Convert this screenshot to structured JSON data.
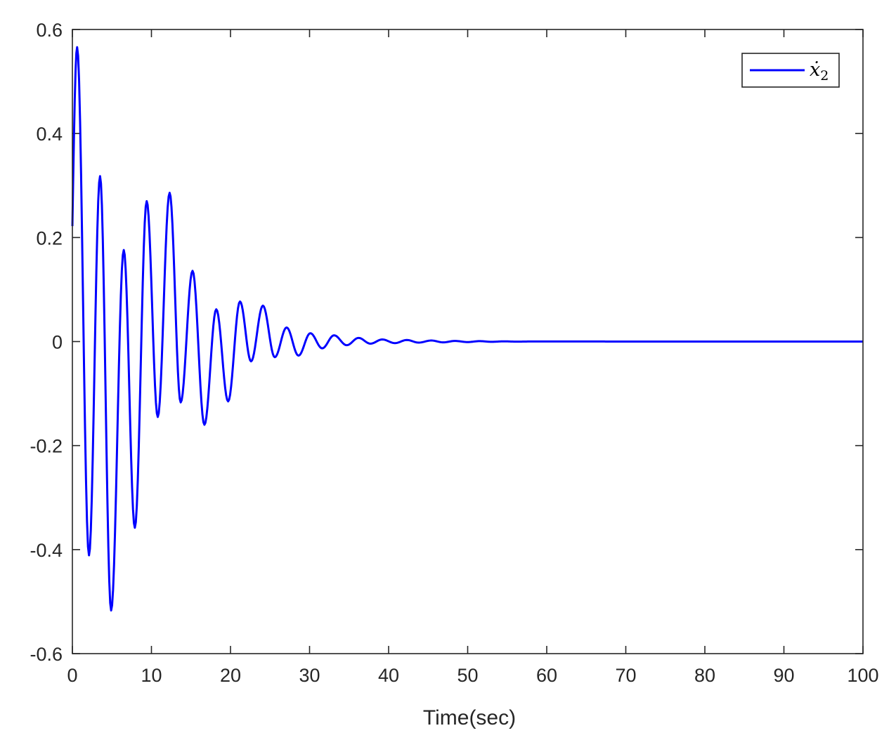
{
  "chart_data": {
    "type": "line",
    "title": "",
    "xlabel": "Time(sec)",
    "ylabel": "",
    "xlim": [
      0,
      100
    ],
    "ylim": [
      -0.6,
      0.6
    ],
    "grid": false,
    "legend_position": "northeast",
    "x_ticks": [
      0,
      10,
      20,
      30,
      40,
      50,
      60,
      70,
      80,
      90,
      100
    ],
    "x_tick_labels": [
      "0",
      "10",
      "20",
      "30",
      "40",
      "50",
      "60",
      "70",
      "80",
      "90",
      "100"
    ],
    "y_ticks": [
      0.6,
      0.4,
      0.2,
      0,
      -0.2,
      -0.4,
      -0.6
    ],
    "y_tick_labels": [
      "0.6",
      "0.4",
      "0.2",
      "0",
      "-0.2",
      "-0.4",
      "-0.6"
    ],
    "series": [
      {
        "name": "x2_dot",
        "legend_label": "ẋ",
        "legend_subscript": "2",
        "color": "#0000ff",
        "note": "damped oscillation; points are start value and successive extrema (t, value), then settles to 0",
        "x": [
          0.0,
          0.6,
          2.1,
          3.5,
          4.9,
          6.5,
          7.9,
          9.4,
          10.8,
          12.3,
          13.7,
          15.2,
          16.7,
          18.2,
          19.7,
          21.2,
          22.6,
          24.1,
          25.6,
          27.1,
          28.6,
          30.1,
          31.6,
          33.1,
          34.7,
          36.2,
          37.7,
          39.2,
          40.8,
          42.3,
          43.8,
          45.4,
          46.9,
          48.4,
          50.0,
          51.5,
          53.0,
          54.6,
          56.2,
          57.7,
          100.0
        ],
        "y": [
          0.222,
          0.566,
          -0.411,
          0.318,
          -0.517,
          0.176,
          -0.358,
          0.27,
          -0.145,
          0.286,
          -0.117,
          0.136,
          -0.16,
          0.062,
          -0.115,
          0.077,
          -0.038,
          0.069,
          -0.03,
          0.027,
          -0.027,
          0.016,
          -0.013,
          0.012,
          -0.007,
          0.007,
          -0.004,
          0.004,
          -0.003,
          0.003,
          -0.002,
          0.002,
          -0.0015,
          0.0012,
          -0.001,
          0.0008,
          -0.0005,
          0.0004,
          -0.0002,
          0.0001,
          0.0
        ]
      }
    ]
  },
  "legend": {
    "symbol": "ẋ",
    "subscript": "2"
  },
  "axes": {
    "xlabel": "Time(sec)"
  }
}
